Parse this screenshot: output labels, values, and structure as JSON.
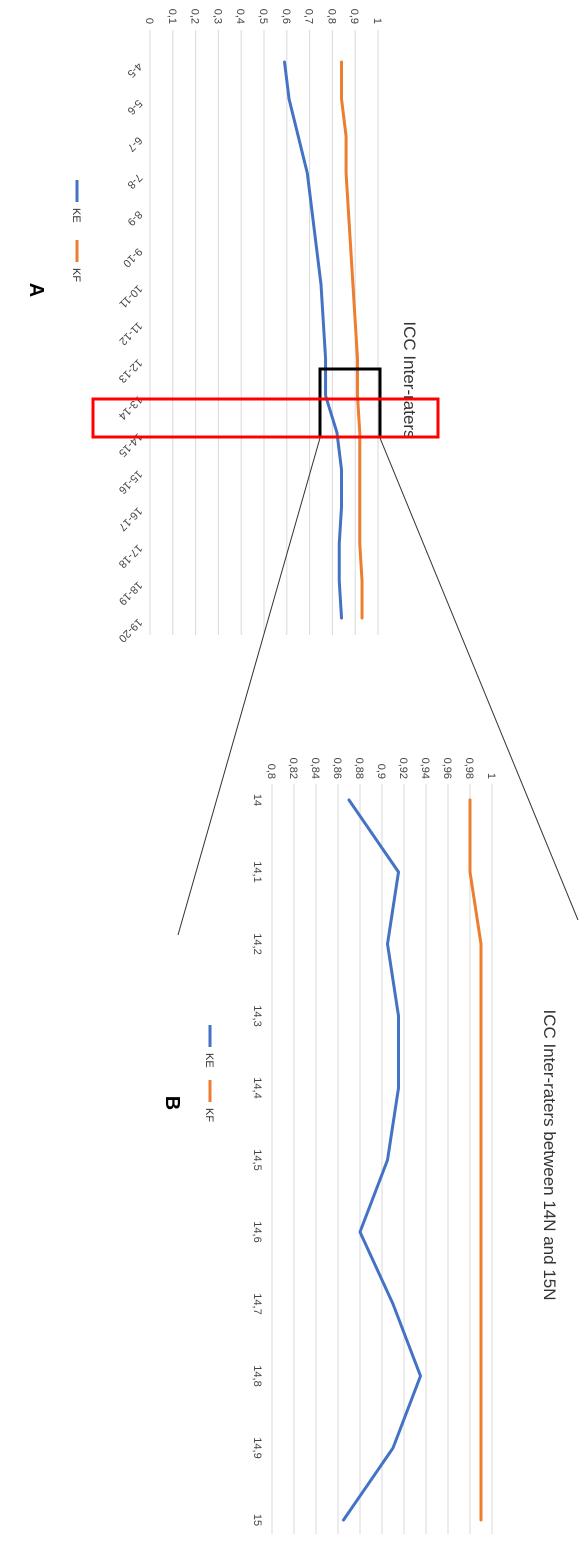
{
  "colors": {
    "KE": "#4472c4",
    "KF": "#ed7d31",
    "grid": "#d9d9d9",
    "highlight_red": "#ff0000",
    "highlight_black": "#000000"
  },
  "chart_data": [
    {
      "panel_label": "A",
      "type": "line",
      "title": "ICC Inter-raters",
      "categories": [
        "4-5",
        "5-6",
        "6-7",
        "7-8",
        "8-9",
        "9-10",
        "10-11",
        "11-12",
        "12-13",
        "13-14",
        "14-15",
        "15-16",
        "16-17",
        "17-18",
        "18-19",
        "19-20"
      ],
      "series": [
        {
          "name": "KE",
          "values": [
            0.59,
            0.61,
            0.65,
            0.69,
            0.71,
            0.73,
            0.75,
            0.76,
            0.77,
            0.77,
            0.82,
            0.84,
            0.84,
            0.83,
            0.83,
            0.84
          ]
        },
        {
          "name": "KF",
          "values": [
            0.84,
            0.84,
            0.86,
            0.86,
            0.87,
            0.88,
            0.89,
            0.9,
            0.91,
            0.91,
            0.92,
            0.92,
            0.92,
            0.92,
            0.93,
            0.93
          ]
        }
      ],
      "yticks": [
        "0",
        "0,1",
        "0,2",
        "0,3",
        "0,4",
        "0,5",
        "0,6",
        "0,7",
        "0,8",
        "0,9",
        "1"
      ],
      "ylim": [
        0,
        1
      ],
      "grid": true,
      "legend": "bottom"
    },
    {
      "panel_label": "B",
      "type": "line",
      "title": "ICC Inter-raters between  14N and 15N",
      "categories": [
        "14",
        "14,1",
        "14,2",
        "14,3",
        "14,4",
        "14,5",
        "14,6",
        "14,7",
        "14,8",
        "14,9",
        "15"
      ],
      "series": [
        {
          "name": "KE",
          "values": [
            0.87,
            0.915,
            0.905,
            0.915,
            0.915,
            0.905,
            0.88,
            0.91,
            0.935,
            0.91,
            0.865
          ]
        },
        {
          "name": "KF",
          "values": [
            0.98,
            0.98,
            0.99,
            0.99,
            0.99,
            0.99,
            0.99,
            0.99,
            0.99,
            0.99,
            0.99
          ]
        }
      ],
      "yticks": [
        "0,8",
        "0,82",
        "0,84",
        "0,86",
        "0,88",
        "0,9",
        "0,92",
        "0,94",
        "0,96",
        "0,98",
        "1"
      ],
      "ylim": [
        0.8,
        1
      ],
      "grid": true,
      "legend": "bottom"
    }
  ]
}
